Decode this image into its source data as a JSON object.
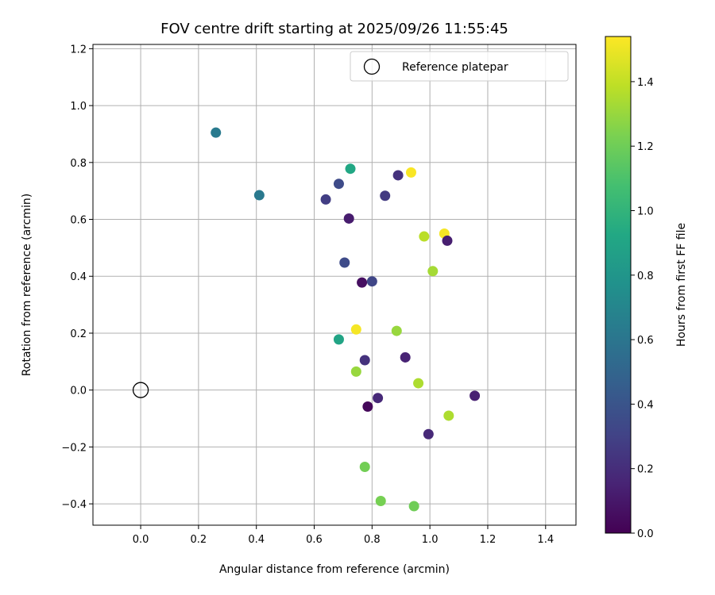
{
  "chart_data": {
    "type": "scatter",
    "title": "FOV centre drift starting at 2025/09/26 11:55:45",
    "xlabel": "Angular distance from reference (arcmin)",
    "ylabel": "Rotation from reference (arcmin)",
    "xlim": [
      -0.165,
      1.505
    ],
    "ylim": [
      -0.475,
      1.215
    ],
    "x_ticks": [
      0.0,
      0.2,
      0.4,
      0.6,
      0.8,
      1.0,
      1.2,
      1.4
    ],
    "x_tick_labels": [
      "0.0",
      "0.2",
      "0.4",
      "0.6",
      "0.8",
      "1.0",
      "1.2",
      "1.4"
    ],
    "y_ticks": [
      -0.4,
      -0.2,
      0.0,
      0.2,
      0.4,
      0.6,
      0.8,
      1.0,
      1.2
    ],
    "y_tick_labels": [
      "−0.4",
      "−0.2",
      "0.0",
      "0.2",
      "0.4",
      "0.6",
      "0.8",
      "1.0",
      "1.2"
    ],
    "grid": true,
    "legend": {
      "placement": "top-right",
      "entries": [
        "Reference platepar"
      ]
    },
    "reference_point": {
      "x": 0.0,
      "y": 0.0,
      "label": "Reference platepar"
    },
    "colorbar": {
      "label": "Hours from first FF file",
      "min": 0.0,
      "max": 1.54,
      "ticks": [
        0.0,
        0.2,
        0.4,
        0.6,
        0.8,
        1.0,
        1.2,
        1.4
      ],
      "tick_labels": [
        "0.0",
        "0.2",
        "0.4",
        "0.6",
        "0.8",
        "1.0",
        "1.2",
        "1.4"
      ],
      "colormap": "viridis"
    },
    "series": [
      {
        "points": [
          {
            "x": 0.26,
            "y": 0.905,
            "c": 0.63
          },
          {
            "x": 0.41,
            "y": 0.685,
            "c": 0.62
          },
          {
            "x": 0.725,
            "y": 0.778,
            "c": 0.92
          },
          {
            "x": 0.685,
            "y": 0.725,
            "c": 0.35
          },
          {
            "x": 0.64,
            "y": 0.67,
            "c": 0.28
          },
          {
            "x": 0.89,
            "y": 0.755,
            "c": 0.22
          },
          {
            "x": 0.935,
            "y": 0.765,
            "c": 1.53
          },
          {
            "x": 0.845,
            "y": 0.683,
            "c": 0.26
          },
          {
            "x": 0.72,
            "y": 0.603,
            "c": 0.12
          },
          {
            "x": 0.98,
            "y": 0.54,
            "c": 1.38
          },
          {
            "x": 1.05,
            "y": 0.55,
            "c": 1.52
          },
          {
            "x": 1.06,
            "y": 0.525,
            "c": 0.13
          },
          {
            "x": 0.705,
            "y": 0.448,
            "c": 0.35
          },
          {
            "x": 1.01,
            "y": 0.418,
            "c": 1.33
          },
          {
            "x": 0.765,
            "y": 0.378,
            "c": 0.06
          },
          {
            "x": 0.8,
            "y": 0.382,
            "c": 0.32
          },
          {
            "x": 0.745,
            "y": 0.213,
            "c": 1.52
          },
          {
            "x": 0.885,
            "y": 0.208,
            "c": 1.3
          },
          {
            "x": 0.685,
            "y": 0.178,
            "c": 0.9
          },
          {
            "x": 0.775,
            "y": 0.105,
            "c": 0.22
          },
          {
            "x": 0.915,
            "y": 0.115,
            "c": 0.15
          },
          {
            "x": 0.745,
            "y": 0.065,
            "c": 1.3
          },
          {
            "x": 0.96,
            "y": 0.024,
            "c": 1.35
          },
          {
            "x": 0.82,
            "y": -0.028,
            "c": 0.18
          },
          {
            "x": 0.785,
            "y": -0.058,
            "c": 0.03
          },
          {
            "x": 1.155,
            "y": -0.02,
            "c": 0.14
          },
          {
            "x": 1.065,
            "y": -0.09,
            "c": 1.35
          },
          {
            "x": 0.995,
            "y": -0.155,
            "c": 0.18
          },
          {
            "x": 0.775,
            "y": -0.27,
            "c": 1.21
          },
          {
            "x": 0.83,
            "y": -0.39,
            "c": 1.22
          },
          {
            "x": 0.945,
            "y": -0.408,
            "c": 1.2
          }
        ]
      }
    ]
  }
}
